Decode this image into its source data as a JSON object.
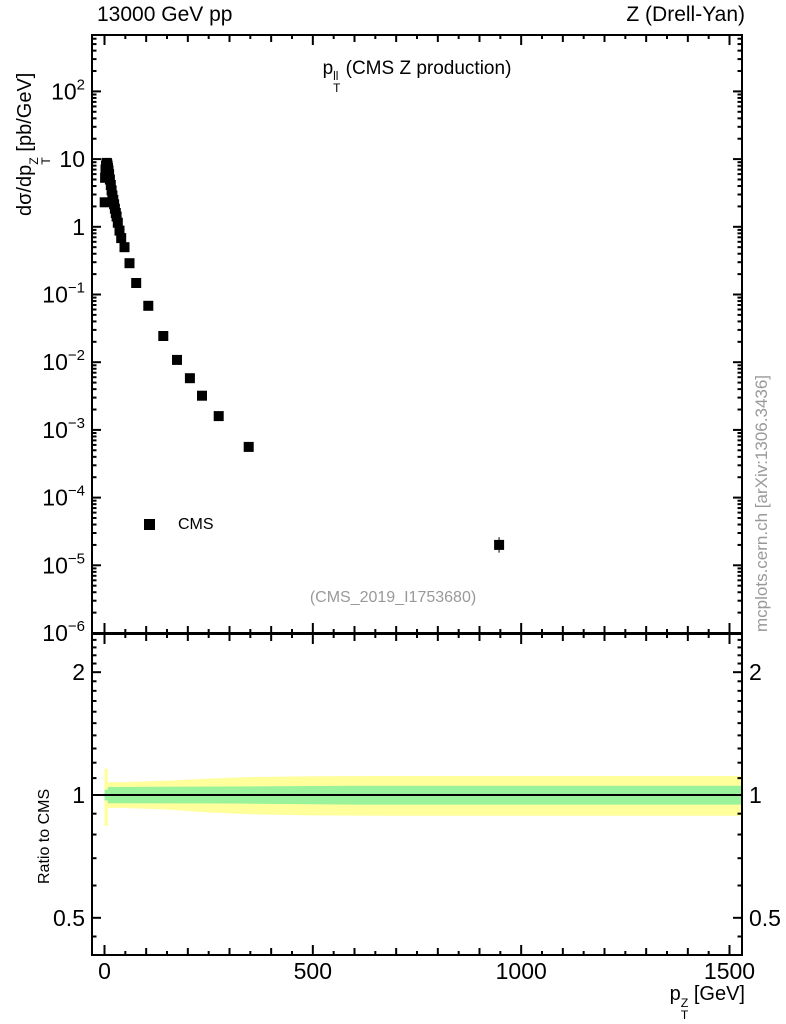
{
  "header": {
    "left": "13000 GeV pp",
    "right": "Z (Drell-Yan)"
  },
  "title": {
    "base": "p",
    "sup": "ll",
    "sub": "T",
    "rest": "(CMS Z production)"
  },
  "legend": {
    "label": "CMS",
    "marker": "filled-square-icon",
    "marker_color": "#000000"
  },
  "ref_label": "(CMS_2019_I1753680)",
  "watermark": "mcplots.cern.ch [arXiv:1306.3436]",
  "colors": {
    "frame": "#000000",
    "marker": "#000000",
    "band_outer": "#ffff9c",
    "band_inner": "#9af29a",
    "ref_text": "#999999"
  },
  "axes": {
    "x": {
      "label_base": "p",
      "label_sup": "Z",
      "label_sub": "T",
      "label_unit": "[GeV]",
      "range": [
        -30,
        1530
      ],
      "major_ticks": [
        {
          "v": 0,
          "label": "0"
        },
        {
          "v": 500,
          "label": "500"
        },
        {
          "v": 1000,
          "label": "1000"
        },
        {
          "v": 1500,
          "label": "1500"
        }
      ],
      "mid_step": 100,
      "minor_step": 50
    },
    "y_main": {
      "label_pre": "dσ/dp",
      "label_sup": "Z",
      "label_sub": "T",
      "label_unit": "[pb/GeV]",
      "scale": "log",
      "range": [
        1e-06,
        676
      ],
      "decade_labels": [
        {
          "v": 100,
          "base": "10",
          "exp": "2"
        },
        {
          "v": 10,
          "base": "10",
          "exp": ""
        },
        {
          "v": 1,
          "base": "1",
          "exp": ""
        },
        {
          "v": 0.1,
          "base": "10",
          "exp": "−1"
        },
        {
          "v": 0.01,
          "base": "10",
          "exp": "−2"
        },
        {
          "v": 0.001,
          "base": "10",
          "exp": "−3"
        },
        {
          "v": 0.0001,
          "base": "10",
          "exp": "−4"
        },
        {
          "v": 1e-05,
          "base": "10",
          "exp": "−5"
        },
        {
          "v": 1e-06,
          "base": "10",
          "exp": "−6"
        }
      ]
    },
    "y_ratio": {
      "label": "Ratio to CMS",
      "scale": "log",
      "range": [
        0.406,
        2.48
      ],
      "ticks": [
        {
          "v": 0.5,
          "label": "0.5"
        },
        {
          "v": 1,
          "label": "1"
        },
        {
          "v": 2,
          "label": "2"
        }
      ],
      "minors": [
        0.45,
        0.6,
        0.7,
        0.8,
        0.9,
        1.1,
        1.2,
        1.3,
        1.4,
        1.5,
        1.6,
        1.7,
        1.8,
        1.9,
        2.1,
        2.2,
        2.3,
        2.4
      ]
    }
  },
  "chart_data": {
    "type": "scatter",
    "title": "pT(ll) (CMS Z production)",
    "xlabel": "pT(Z) [GeV]",
    "ylabel": "dsigma/dpT(Z) [pb/GeV]",
    "xlim": [
      -30,
      1530
    ],
    "series": [
      {
        "name": "CMS",
        "marker": "filled-square",
        "color": "#000000",
        "points": [
          [
            0.5,
            2.3
          ],
          [
            1.5,
            5.3
          ],
          [
            2.5,
            7.0
          ],
          [
            3.5,
            7.9
          ],
          [
            4.5,
            8.6
          ],
          [
            5.5,
            8.8
          ],
          [
            6.5,
            8.5
          ],
          [
            7.5,
            8.0
          ],
          [
            8.5,
            7.4
          ],
          [
            9.5,
            6.8
          ],
          [
            11,
            6.0
          ],
          [
            13,
            5.0
          ],
          [
            15,
            4.15
          ],
          [
            17,
            3.45
          ],
          [
            19,
            2.9
          ],
          [
            21,
            2.5
          ],
          [
            23,
            2.15
          ],
          [
            25,
            1.85
          ],
          [
            27,
            1.6
          ],
          [
            29,
            1.42
          ],
          [
            32,
            1.15
          ],
          [
            36,
            0.88
          ],
          [
            40,
            0.68
          ],
          [
            48,
            0.5
          ],
          [
            60,
            0.29
          ],
          [
            76,
            0.148
          ],
          [
            105,
            0.068
          ],
          [
            141,
            0.0244
          ],
          [
            174,
            0.0108
          ],
          [
            205,
            0.0058
          ],
          [
            234,
            0.0032
          ],
          [
            274,
            0.0016
          ],
          [
            346,
            0.00056,
            1.12
          ],
          [
            947,
            2e-05,
            1.3
          ]
        ]
      }
    ],
    "ratio_panel": {
      "ylabel": "Ratio to CMS",
      "ylim": [
        0.406,
        2.48
      ],
      "reference_line": 1.0,
      "bands": [
        {
          "name": "mc-uncertainty-outer",
          "color": "#ffff9c",
          "points": [
            [
              0,
              0.84,
              1.16
            ],
            [
              8,
              0.84,
              1.16
            ],
            [
              8,
              0.93,
              1.075
            ],
            [
              40,
              0.93,
              1.075
            ],
            [
              100,
              0.925,
              1.08
            ],
            [
              160,
              0.92,
              1.085
            ],
            [
              250,
              0.906,
              1.097
            ],
            [
              350,
              0.897,
              1.107
            ],
            [
              500,
              0.891,
              1.112
            ],
            [
              700,
              0.889,
              1.113
            ],
            [
              1530,
              0.889,
              1.113
            ]
          ]
        },
        {
          "name": "mc-uncertainty-inner",
          "color": "#9af29a",
          "points": [
            [
              0,
              0.97,
              1.03
            ],
            [
              8,
              0.97,
              1.03
            ],
            [
              8,
              0.955,
              1.046
            ],
            [
              300,
              0.953,
              1.049
            ],
            [
              600,
              0.947,
              1.053
            ],
            [
              1530,
              0.947,
              1.053
            ]
          ]
        }
      ]
    }
  }
}
